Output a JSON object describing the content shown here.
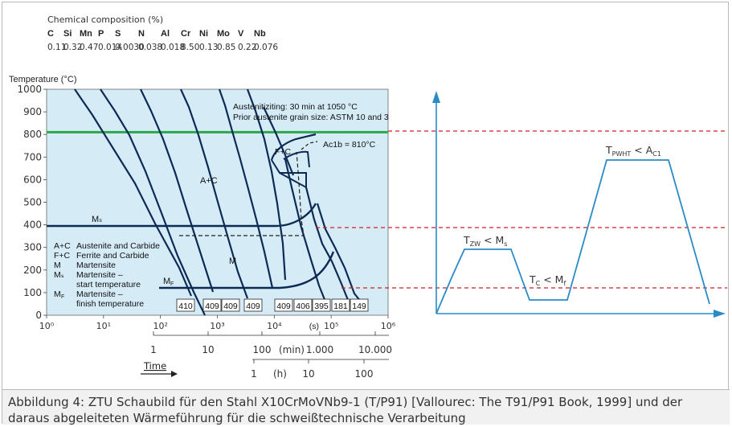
{
  "composition": {
    "title": "Chemical composition (%)",
    "elements": [
      "C",
      "Si",
      "Mn",
      "P",
      "S",
      "N",
      "Al",
      "Cr",
      "Ni",
      "Mo",
      "V",
      "Nb"
    ],
    "values": [
      "0.11",
      "0.32",
      "0.47",
      "0.014",
      "0.0030",
      "0.038",
      "0.018",
      "8.50",
      "0.13",
      "0.85",
      "0.22",
      "0.076"
    ]
  },
  "chart_data": [
    {
      "type": "line",
      "name": "CCT diagram",
      "ylabel": "Temperature (°C)",
      "ylim": [
        0,
        1000
      ],
      "yticks": [
        0,
        100,
        200,
        300,
        400,
        500,
        600,
        700,
        800,
        900,
        1000
      ],
      "xscale": "log",
      "xlim": [
        1,
        1000000
      ],
      "xticks": [
        "10⁰",
        "10¹",
        "10²",
        "10³",
        "10⁴",
        "10⁵",
        "10⁶"
      ],
      "xunit": "(s)",
      "time_label": "Time",
      "min_scale": {
        "unit": "(min)",
        "ticks": [
          "1",
          "10",
          "100",
          "1.000",
          "10.000"
        ]
      },
      "h_scale": {
        "unit": "(h)",
        "ticks": [
          "1",
          "10",
          "100"
        ]
      },
      "annotations": {
        "austenitizing": "Austenitiziting: 30 min at 1050 °C",
        "grain_size": "Prior austenite grain size: ASTM 10 and 3",
        "ac1b": "Ac1b = 810°C",
        "fc": "F+C",
        "ac": "A+C",
        "m": "M",
        "ms": "Mₛ",
        "mf": "M",
        "mf_sub": "F"
      },
      "reference_line_temperature": 810,
      "ms_temperature": 400,
      "mf_temperature": 120,
      "hardness_values": [
        "410",
        "409",
        "409",
        "409",
        "409",
        "406",
        "395",
        "181",
        "149"
      ],
      "legend": [
        {
          "symbol": "A+C",
          "text": "Austenite and Carbide"
        },
        {
          "symbol": "F+C",
          "text": "Ferrite and Carbide"
        },
        {
          "symbol": "M",
          "text": "Martensite"
        },
        {
          "symbol": "Mₛ",
          "text": "Martensite –",
          "text2": "start temperature"
        },
        {
          "symbol": "M",
          "symbol_sub": "F",
          "text": "Martensite –",
          "text2": "finish temperature"
        }
      ],
      "colors": {
        "panel": "#d5ecf7",
        "curve": "#0d2a55",
        "green": "#2ba84a",
        "red": "#d21f26",
        "blue": "#2a8bc7"
      }
    },
    {
      "type": "line",
      "name": "Heat treatment scheme",
      "labels": {
        "tzw": {
          "main": "T",
          "sub": "ZW",
          "rest": " < M",
          "rest_sub": "s"
        },
        "tc": {
          "main": "T",
          "sub": "C",
          "rest": " < M",
          "rest_sub": "f"
        },
        "tpwht": {
          "main": "T",
          "sub": "PWHT",
          "rest": " < A",
          "rest_sub": "C1"
        }
      }
    }
  ],
  "caption": "Abbildung 4: ZTU Schaubild für den Stahl X10CrMoVNb9-1 (T/P91) [Vallourec: The T91/P91 Book, 1999] und der daraus abgeleiteten Wärmeführung für die schweißtechnische Verarbeitung"
}
